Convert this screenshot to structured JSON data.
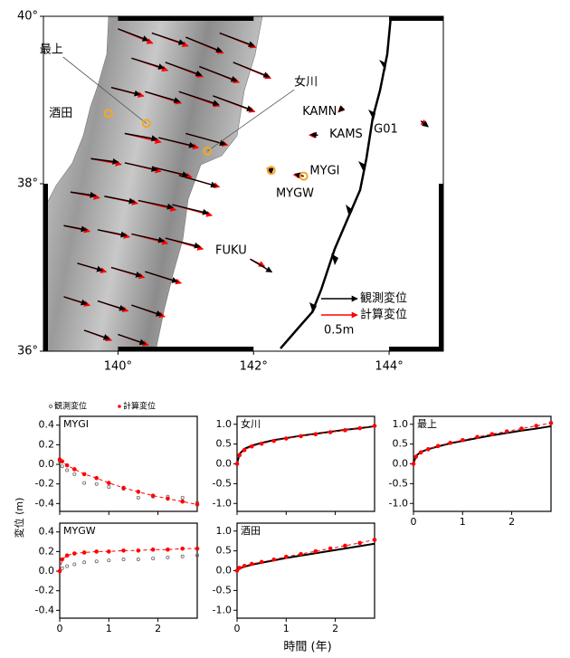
{
  "map": {
    "xlim": [
      138.9,
      144.8
    ],
    "ylim": [
      36,
      40
    ],
    "xticks": [
      {
        "value": 140,
        "label": "140°"
      },
      {
        "value": 142,
        "label": "142°"
      },
      {
        "value": 144,
        "label": "144°"
      }
    ],
    "yticks": [
      {
        "value": 36,
        "label": "36°"
      },
      {
        "value": 38,
        "label": "38°"
      },
      {
        "value": 40,
        "label": "40°"
      }
    ],
    "observed_color": "#000000",
    "computed_color": "#ff0000",
    "site_color": "#f5a623",
    "legend": {
      "observed": "観測変位",
      "computed": "計算変位",
      "scale": {
        "value": 0.5,
        "label": "0.5m"
      }
    },
    "sites": [
      {
        "label": "最上",
        "lon": 140.42,
        "lat": 38.72,
        "label_lon": 139.19,
        "label_lat": 39.6,
        "circle": true,
        "leader": true
      },
      {
        "label": "酒田",
        "lon": 139.86,
        "lat": 38.84,
        "label_lon": 139.33,
        "label_lat": 38.84,
        "circle": true,
        "leader": false
      },
      {
        "label": "女川",
        "lon": 141.32,
        "lat": 38.39,
        "label_lon": 142.6,
        "label_lat": 39.21,
        "circle": true,
        "leader": true
      },
      {
        "label": "MYGI",
        "lon": 142.74,
        "lat": 38.09,
        "label_lon": 142.83,
        "label_lat": 38.15,
        "circle": true,
        "leader": false
      },
      {
        "label": "MYGW",
        "lon": 142.26,
        "lat": 38.16,
        "label_lon": 142.33,
        "label_lat": 37.88,
        "circle": true,
        "leader": false
      },
      {
        "label": "KAMN",
        "lon": 143.28,
        "lat": 38.88,
        "label_lon": 143.23,
        "label_lat": 38.86,
        "circle": false,
        "leader": false
      },
      {
        "label": "KAMS",
        "lon": 142.95,
        "lat": 38.58,
        "label_lon": 143.12,
        "label_lat": 38.59,
        "circle": false,
        "leader": false
      },
      {
        "label": "G01",
        "lon": 144.47,
        "lat": 38.75,
        "label_lon": 144.13,
        "label_lat": 38.65,
        "circle": false,
        "leader": false
      },
      {
        "label": "FUKU",
        "lon": 141.95,
        "lat": 37.1,
        "label_lon": 141.9,
        "label_lat": 37.2,
        "circle": false,
        "leader": false
      }
    ],
    "vectors": [
      [
        140.0,
        39.85,
        0.42,
        -0.16,
        0.48,
        -0.2
      ],
      [
        140.5,
        39.8,
        0.45,
        -0.15,
        0.5,
        -0.18
      ],
      [
        141.0,
        39.75,
        0.5,
        -0.2,
        0.52,
        -0.22
      ],
      [
        141.5,
        39.8,
        0.48,
        -0.18,
        0.5,
        -0.2
      ],
      [
        140.2,
        39.5,
        0.45,
        -0.14,
        0.5,
        -0.17
      ],
      [
        140.7,
        39.45,
        0.5,
        -0.18,
        0.52,
        -0.2
      ],
      [
        141.2,
        39.4,
        0.52,
        -0.2,
        0.55,
        -0.22
      ],
      [
        141.7,
        39.45,
        0.5,
        -0.2,
        0.52,
        -0.22
      ],
      [
        139.9,
        39.15,
        0.4,
        -0.1,
        0.45,
        -0.12
      ],
      [
        140.4,
        39.1,
        0.48,
        -0.14,
        0.5,
        -0.16
      ],
      [
        140.9,
        39.1,
        0.55,
        -0.18,
        0.56,
        -0.2
      ],
      [
        141.4,
        39.05,
        0.55,
        -0.2,
        0.58,
        -0.22
      ],
      [
        140.1,
        38.6,
        0.45,
        -0.08,
        0.5,
        -0.12
      ],
      [
        140.6,
        38.55,
        0.5,
        -0.12,
        0.55,
        -0.14
      ],
      [
        141.0,
        38.6,
        0.55,
        -0.15,
        0.58,
        -0.16
      ],
      [
        139.6,
        38.3,
        0.38,
        -0.05,
        0.42,
        -0.08
      ],
      [
        140.1,
        38.25,
        0.45,
        -0.1,
        0.5,
        -0.12
      ],
      [
        140.5,
        38.2,
        0.5,
        -0.12,
        0.55,
        -0.14
      ],
      [
        140.9,
        38.1,
        0.52,
        -0.15,
        0.56,
        -0.16
      ],
      [
        139.3,
        37.9,
        0.35,
        -0.05,
        0.4,
        -0.08
      ],
      [
        139.8,
        37.85,
        0.42,
        -0.08,
        0.46,
        -0.1
      ],
      [
        140.3,
        37.8,
        0.48,
        -0.1,
        0.52,
        -0.13
      ],
      [
        140.8,
        37.75,
        0.5,
        -0.12,
        0.55,
        -0.15
      ],
      [
        139.2,
        37.5,
        0.32,
        -0.06,
        0.36,
        -0.08
      ],
      [
        139.7,
        37.45,
        0.4,
        -0.08,
        0.44,
        -0.1
      ],
      [
        140.2,
        37.4,
        0.45,
        -0.1,
        0.5,
        -0.13
      ],
      [
        140.7,
        37.35,
        0.48,
        -0.12,
        0.52,
        -0.15
      ],
      [
        139.4,
        37.05,
        0.35,
        -0.1,
        0.4,
        -0.12
      ],
      [
        139.9,
        37.0,
        0.42,
        -0.12,
        0.46,
        -0.14
      ],
      [
        140.4,
        36.95,
        0.45,
        -0.14,
        0.5,
        -0.16
      ],
      [
        139.2,
        36.65,
        0.32,
        -0.1,
        0.36,
        -0.12
      ],
      [
        139.7,
        36.6,
        0.38,
        -0.12,
        0.42,
        -0.14
      ],
      [
        140.2,
        36.55,
        0.42,
        -0.14,
        0.46,
        -0.16
      ],
      [
        139.5,
        36.25,
        0.35,
        -0.12,
        0.38,
        -0.14
      ],
      [
        140.0,
        36.2,
        0.38,
        -0.13,
        0.42,
        -0.15
      ],
      [
        143.28,
        38.88,
        -0.02,
        -0.02,
        -0.03,
        -0.03
      ],
      [
        142.95,
        38.58,
        -0.1,
        0.01,
        -0.12,
        0.0
      ],
      [
        144.47,
        38.75,
        0.1,
        -0.08,
        0.08,
        -0.06
      ],
      [
        142.74,
        38.09,
        -0.12,
        0.03,
        -0.14,
        0.02
      ],
      [
        142.26,
        38.16,
        -0.05,
        0.02,
        -0.06,
        0.03
      ],
      [
        141.95,
        37.1,
        0.3,
        -0.18,
        0.2,
        -0.1
      ]
    ]
  },
  "figure": {
    "xlabel": "時間 (年)",
    "ylabel": "変位 (m)"
  },
  "chart_data": [
    {
      "type": "scatter",
      "title": "MYGI",
      "x": [
        0,
        0.05,
        0.15,
        0.3,
        0.5,
        0.75,
        1.0,
        1.3,
        1.6,
        1.9,
        2.2,
        2.5,
        2.8
      ],
      "series": [
        {
          "name": "観測変位",
          "color": "#666666",
          "style": "open",
          "values": [
            0.03,
            -0.02,
            -0.06,
            -0.1,
            -0.19,
            -0.2,
            -0.23,
            -0.25,
            -0.34,
            -0.33,
            -0.33,
            -0.34,
            -0.39
          ]
        },
        {
          "name": "計算変位",
          "color": "#ff0000",
          "style": "dot-dashed",
          "values": [
            0.05,
            0.03,
            -0.01,
            -0.05,
            -0.1,
            -0.14,
            -0.19,
            -0.24,
            -0.28,
            -0.32,
            -0.35,
            -0.38,
            -0.41
          ]
        }
      ],
      "xlim": [
        0,
        2.8
      ],
      "xticks": [
        0,
        1,
        2
      ],
      "xtick_labels": false,
      "ylim": [
        -0.48,
        0.49
      ],
      "yticks": [
        0.4,
        0.2,
        {
          "value": 0,
          "label": "0.0"
        },
        -0.2,
        -0.4
      ]
    },
    {
      "type": "scatter",
      "title": "女川",
      "x": [
        0,
        0.05,
        0.15,
        0.3,
        0.5,
        0.75,
        1.0,
        1.3,
        1.6,
        1.9,
        2.2,
        2.5,
        2.8
      ],
      "series": [
        {
          "color": "#000000",
          "style": "line",
          "values": [
            0,
            0.25,
            0.38,
            0.46,
            0.53,
            0.6,
            0.65,
            0.71,
            0.76,
            0.81,
            0.86,
            0.9,
            0.95
          ]
        },
        {
          "name": "計算変位",
          "color": "#ff0000",
          "style": "dot-dashed",
          "values": [
            0,
            0.22,
            0.35,
            0.44,
            0.51,
            0.58,
            0.64,
            0.7,
            0.75,
            0.8,
            0.85,
            0.9,
            0.96
          ]
        }
      ],
      "xlim": [
        0,
        2.8
      ],
      "xticks": [
        0,
        1,
        2
      ],
      "xtick_labels": false,
      "ylim": [
        -1.2,
        1.2
      ],
      "yticks": [
        {
          "value": 1,
          "label": "1.0"
        },
        0.5,
        {
          "value": 0,
          "label": "0.0"
        },
        -0.5,
        {
          "value": -1,
          "label": "-1.0"
        }
      ]
    },
    {
      "type": "scatter",
      "title": "最上",
      "x": [
        0,
        0.05,
        0.15,
        0.3,
        0.5,
        0.75,
        1.0,
        1.3,
        1.6,
        1.9,
        2.2,
        2.5,
        2.8
      ],
      "series": [
        {
          "color": "#000000",
          "style": "line",
          "values": [
            0,
            0.2,
            0.3,
            0.37,
            0.44,
            0.52,
            0.58,
            0.65,
            0.72,
            0.78,
            0.84,
            0.89,
            0.95
          ]
        },
        {
          "name": "計算変位",
          "color": "#ff0000",
          "style": "dot-dashed",
          "values": [
            0,
            0.18,
            0.29,
            0.37,
            0.45,
            0.53,
            0.6,
            0.68,
            0.75,
            0.82,
            0.89,
            0.96,
            1.03
          ]
        }
      ],
      "xlim": [
        0,
        2.8
      ],
      "xticks": [
        0,
        1,
        2
      ],
      "xtick_labels": true,
      "ylim": [
        -1.2,
        1.2
      ],
      "yticks": [
        {
          "value": 1,
          "label": "1.0"
        },
        0.5,
        {
          "value": 0,
          "label": "0.0"
        },
        -0.5,
        {
          "value": -1,
          "label": "-1.0"
        }
      ]
    },
    {
      "type": "scatter",
      "title": "MYGW",
      "x": [
        0,
        0.05,
        0.15,
        0.3,
        0.5,
        0.75,
        1.0,
        1.3,
        1.6,
        1.9,
        2.2,
        2.5,
        2.8
      ],
      "series": [
        {
          "name": "観測変位",
          "color": "#666666",
          "style": "open",
          "values": [
            0.0,
            0.03,
            0.05,
            0.07,
            0.09,
            0.1,
            0.11,
            0.12,
            0.12,
            0.13,
            0.14,
            0.15,
            0.16
          ]
        },
        {
          "name": "計算変位",
          "color": "#ff0000",
          "style": "dot-dashed",
          "values": [
            0.0,
            0.12,
            0.16,
            0.18,
            0.19,
            0.2,
            0.2,
            0.21,
            0.21,
            0.22,
            0.22,
            0.23,
            0.23
          ]
        }
      ],
      "xlim": [
        0,
        2.8
      ],
      "xticks": [
        0,
        1,
        2
      ],
      "xtick_labels": true,
      "ylim": [
        -0.48,
        0.49
      ],
      "yticks": [
        0.4,
        0.2,
        {
          "value": 0,
          "label": "0.0"
        },
        -0.2,
        -0.4
      ]
    },
    {
      "type": "scatter",
      "title": "酒田",
      "x": [
        0,
        0.05,
        0.15,
        0.3,
        0.5,
        0.75,
        1.0,
        1.3,
        1.6,
        1.9,
        2.2,
        2.5,
        2.8
      ],
      "series": [
        {
          "color": "#000000",
          "style": "line",
          "values": [
            0,
            0.06,
            0.1,
            0.15,
            0.2,
            0.26,
            0.32,
            0.38,
            0.44,
            0.5,
            0.56,
            0.62,
            0.68
          ]
        },
        {
          "name": "計算変位",
          "color": "#ff0000",
          "style": "dot-dashed",
          "values": [
            0,
            0.07,
            0.12,
            0.17,
            0.22,
            0.28,
            0.35,
            0.42,
            0.49,
            0.56,
            0.63,
            0.7,
            0.78
          ]
        }
      ],
      "xlim": [
        0,
        2.8
      ],
      "xticks": [
        0,
        1,
        2
      ],
      "xtick_labels": true,
      "ylim": [
        -1.2,
        1.2
      ],
      "yticks": [
        {
          "value": 1,
          "label": "1.0"
        },
        0.5,
        {
          "value": 0,
          "label": "0.0"
        },
        -0.5,
        {
          "value": -1,
          "label": "-1.0"
        }
      ]
    }
  ]
}
